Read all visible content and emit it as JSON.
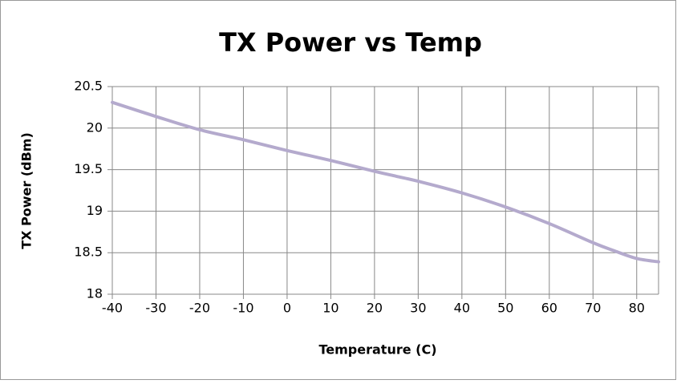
{
  "chart_data": {
    "type": "line",
    "title": "TX Power vs Temp",
    "x_label": "Temperature (C)",
    "y_label": "TX Power (dBm)",
    "x": [
      -40,
      -30,
      -20,
      -10,
      0,
      10,
      20,
      25,
      30,
      40,
      50,
      60,
      70,
      75,
      80,
      85
    ],
    "series": [
      {
        "name": "TX Power",
        "color": "#b4aacd",
        "values": [
          20.31,
          20.14,
          19.98,
          19.86,
          19.73,
          19.61,
          19.48,
          19.42,
          19.36,
          19.22,
          19.05,
          18.85,
          18.62,
          18.52,
          18.43,
          18.39
        ]
      }
    ],
    "xlim": [
      -40,
      85
    ],
    "xticks": [
      -40,
      -30,
      -20,
      -10,
      0,
      10,
      20,
      30,
      40,
      50,
      60,
      70,
      80
    ],
    "ylim": [
      18,
      20.5
    ],
    "yticks": [
      18,
      18.5,
      19,
      19.5,
      20,
      20.5
    ],
    "grid": true
  }
}
